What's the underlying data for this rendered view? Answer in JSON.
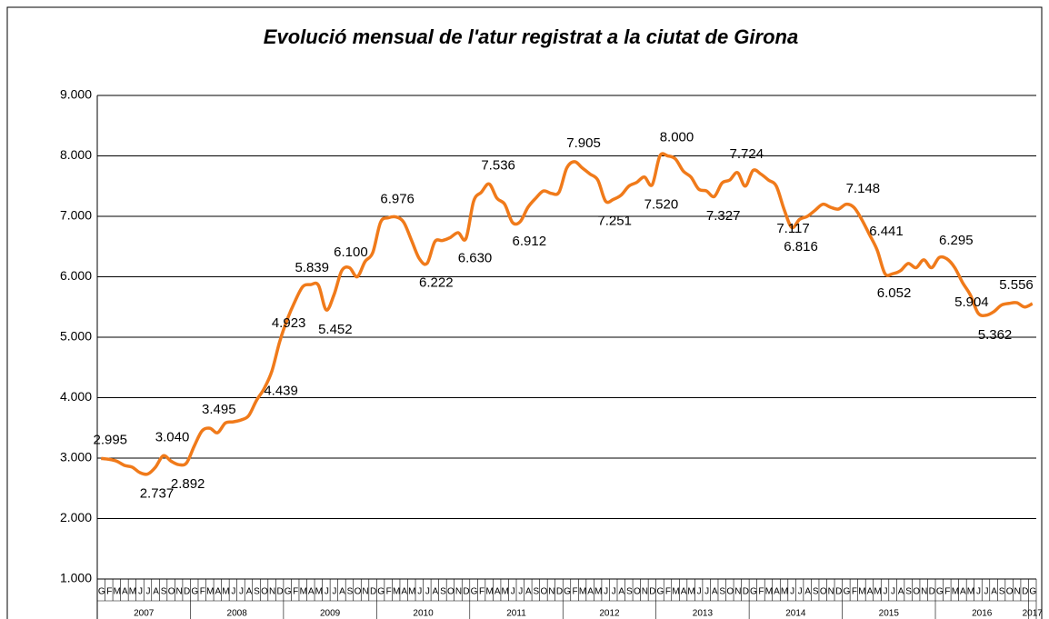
{
  "chart_data": {
    "type": "line",
    "title": "Evolució mensual de l'atur registrat a la ciutat de Girona",
    "title_color": "#2e95c6",
    "color": "#f07a1a",
    "categories": [
      "G",
      "F",
      "M",
      "A",
      "M",
      "J",
      "J",
      "A",
      "S",
      "O",
      "N",
      "D",
      "G",
      "F",
      "M",
      "A",
      "M",
      "J",
      "J",
      "A",
      "S",
      "O",
      "N",
      "D",
      "G",
      "F",
      "M",
      "A",
      "M",
      "J",
      "J",
      "A",
      "S",
      "O",
      "N",
      "D",
      "G",
      "F",
      "M",
      "A",
      "M",
      "J",
      "J",
      "A",
      "S",
      "O",
      "N",
      "D",
      "G",
      "F",
      "M",
      "A",
      "M",
      "J",
      "J",
      "A",
      "S",
      "O",
      "N",
      "D",
      "G",
      "F",
      "M",
      "A",
      "M",
      "J",
      "J",
      "A",
      "S",
      "O",
      "N",
      "D",
      "G",
      "F",
      "M",
      "A",
      "M",
      "J",
      "J",
      "A",
      "S",
      "O",
      "N",
      "D",
      "G",
      "F",
      "M",
      "A",
      "M",
      "J",
      "J",
      "A",
      "S",
      "O",
      "N",
      "D",
      "G",
      "F",
      "M",
      "A",
      "M",
      "J",
      "J",
      "A",
      "S",
      "O",
      "N",
      "D",
      "G",
      "F",
      "M",
      "A",
      "M",
      "J",
      "J",
      "A",
      "S",
      "O",
      "N",
      "D",
      "G"
    ],
    "years": [
      "2007",
      "2008",
      "2009",
      "2010",
      "2011",
      "2012",
      "2013",
      "2014",
      "2015",
      "2016",
      "2017"
    ],
    "values": [
      2995,
      2980,
      2950,
      2880,
      2850,
      2760,
      2737,
      2850,
      3040,
      2950,
      2892,
      2920,
      3200,
      3450,
      3495,
      3420,
      3580,
      3600,
      3630,
      3700,
      3950,
      4150,
      4439,
      4923,
      5300,
      5600,
      5839,
      5870,
      5860,
      5452,
      5700,
      6100,
      6150,
      6000,
      6250,
      6400,
      6900,
      6976,
      6990,
      6900,
      6600,
      6300,
      6222,
      6580,
      6600,
      6650,
      6730,
      6630,
      7250,
      7400,
      7536,
      7300,
      7200,
      6900,
      6912,
      7150,
      7300,
      7420,
      7380,
      7400,
      7800,
      7905,
      7800,
      7700,
      7600,
      7251,
      7280,
      7350,
      7500,
      7560,
      7650,
      7520,
      8000,
      8000,
      7950,
      7750,
      7650,
      7450,
      7420,
      7327,
      7550,
      7600,
      7724,
      7500,
      7760,
      7700,
      7600,
      7500,
      7117,
      6816,
      6950,
      7000,
      7100,
      7200,
      7150,
      7120,
      7200,
      7148,
      6950,
      6700,
      6441,
      6052,
      6050,
      6100,
      6220,
      6150,
      6280,
      6150,
      6320,
      6295,
      6150,
      5904,
      5700,
      5400,
      5362,
      5420,
      5530,
      5560,
      5570,
      5500,
      5556
    ],
    "value_labels": [
      "2.995",
      null,
      null,
      null,
      null,
      null,
      "2.737",
      null,
      "3.040",
      null,
      "2.892",
      null,
      null,
      null,
      "3.495",
      null,
      null,
      null,
      null,
      null,
      null,
      null,
      "4.439",
      "4.923",
      null,
      null,
      "5.839",
      null,
      null,
      "5.452",
      null,
      "6.100",
      null,
      null,
      null,
      null,
      null,
      "6.976",
      null,
      null,
      null,
      null,
      "6.222",
      null,
      null,
      null,
      null,
      "6.630",
      null,
      null,
      "7.536",
      null,
      null,
      null,
      "6.912",
      null,
      null,
      null,
      null,
      null,
      null,
      "7.905",
      null,
      null,
      null,
      "7.251",
      null,
      null,
      null,
      null,
      null,
      "7.520",
      null,
      "8.000",
      null,
      null,
      null,
      null,
      null,
      "7.327",
      null,
      null,
      "7.724",
      null,
      null,
      null,
      null,
      null,
      "7.117",
      "6.816",
      null,
      null,
      null,
      null,
      null,
      null,
      null,
      "7.148",
      null,
      null,
      "6.441",
      "6.052",
      null,
      null,
      null,
      null,
      null,
      null,
      null,
      "6.295",
      null,
      "5.904",
      null,
      null,
      "5.362",
      null,
      null,
      null,
      null,
      null,
      "5.556"
    ],
    "ylim": [
      1000,
      9000
    ],
    "yticks": [
      {
        "value": 1000,
        "label": "1.000"
      },
      {
        "value": 2000,
        "label": "2.000"
      },
      {
        "value": 3000,
        "label": "3.000"
      },
      {
        "value": 4000,
        "label": "4.000"
      },
      {
        "value": 5000,
        "label": "5.000"
      },
      {
        "value": 6000,
        "label": "6.000"
      },
      {
        "value": 7000,
        "label": "7.000"
      },
      {
        "value": 8000,
        "label": "8.000"
      },
      {
        "value": 9000,
        "label": "9.000"
      }
    ],
    "grid": true
  }
}
